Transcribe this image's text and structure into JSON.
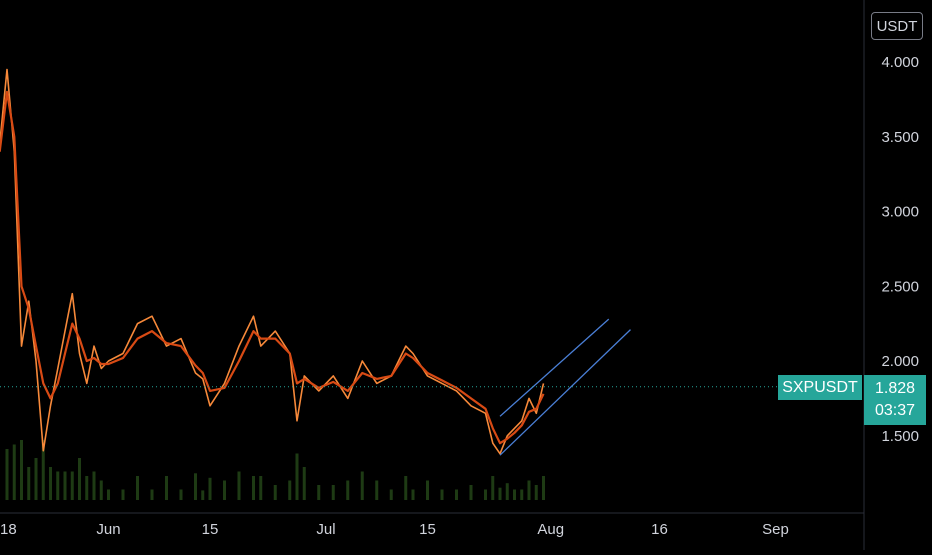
{
  "currency_button": "USDT",
  "symbol": "SXPUSDT",
  "last_price": "1.828",
  "countdown": "03:37",
  "colors": {
    "background": "#000000",
    "price_line": "#f7893a",
    "moving_average": "#d84a14",
    "channel": "#4a7fd6",
    "last_price_badge": "#26a69a",
    "axis_text": "#d1d4dc",
    "volume": "#1e3b14"
  },
  "chart_data": {
    "type": "line",
    "x_tick_labels": [
      "18",
      "Jun",
      "15",
      "Jul",
      "15",
      "Aug",
      "16",
      "Sep"
    ],
    "y_tick_labels": [
      "4.000",
      "3.500",
      "3.000",
      "2.500",
      "2.000",
      "1.500"
    ],
    "ylim": [
      1.0,
      4.2
    ],
    "xlim": [
      "2021-05-18",
      "2021-09-08"
    ],
    "grid": false,
    "last_value": 1.828,
    "series": [
      {
        "values": [
          [
            "2021-05-17",
            3.45
          ],
          [
            "2021-05-18",
            3.95
          ],
          [
            "2021-05-19",
            3.4
          ],
          [
            "2021-05-20",
            2.1
          ],
          [
            "2021-05-21",
            2.4
          ],
          [
            "2021-05-22",
            2.0
          ],
          [
            "2021-05-23",
            1.4
          ],
          [
            "2021-05-24",
            1.7
          ],
          [
            "2021-05-25",
            1.95
          ],
          [
            "2021-05-26",
            2.2
          ],
          [
            "2021-05-27",
            2.45
          ],
          [
            "2021-05-28",
            2.05
          ],
          [
            "2021-05-29",
            1.85
          ],
          [
            "2021-05-30",
            2.1
          ],
          [
            "2021-05-31",
            1.95
          ],
          [
            "2021-06-01",
            2.0
          ],
          [
            "2021-06-03",
            2.05
          ],
          [
            "2021-06-05",
            2.25
          ],
          [
            "2021-06-07",
            2.3
          ],
          [
            "2021-06-09",
            2.1
          ],
          [
            "2021-06-11",
            2.15
          ],
          [
            "2021-06-13",
            1.92
          ],
          [
            "2021-06-14",
            1.88
          ],
          [
            "2021-06-15",
            1.7
          ],
          [
            "2021-06-17",
            1.85
          ],
          [
            "2021-06-19",
            2.1
          ],
          [
            "2021-06-21",
            2.3
          ],
          [
            "2021-06-22",
            2.1
          ],
          [
            "2021-06-24",
            2.2
          ],
          [
            "2021-06-26",
            2.05
          ],
          [
            "2021-06-27",
            1.6
          ],
          [
            "2021-06-28",
            1.9
          ],
          [
            "2021-06-30",
            1.8
          ],
          [
            "2021-07-02",
            1.9
          ],
          [
            "2021-07-04",
            1.75
          ],
          [
            "2021-07-06",
            2.0
          ],
          [
            "2021-07-08",
            1.85
          ],
          [
            "2021-07-10",
            1.9
          ],
          [
            "2021-07-12",
            2.1
          ],
          [
            "2021-07-13",
            2.05
          ],
          [
            "2021-07-15",
            1.9
          ],
          [
            "2021-07-17",
            1.85
          ],
          [
            "2021-07-19",
            1.8
          ],
          [
            "2021-07-21",
            1.7
          ],
          [
            "2021-07-23",
            1.65
          ],
          [
            "2021-07-24",
            1.45
          ],
          [
            "2021-07-25",
            1.38
          ],
          [
            "2021-07-26",
            1.5
          ],
          [
            "2021-07-27",
            1.55
          ],
          [
            "2021-07-28",
            1.6
          ],
          [
            "2021-07-29",
            1.75
          ],
          [
            "2021-07-30",
            1.65
          ],
          [
            "2021-07-31",
            1.85
          ]
        ]
      },
      {
        "values": [
          [
            "2021-05-17",
            3.4
          ],
          [
            "2021-05-18",
            3.8
          ],
          [
            "2021-05-19",
            3.5
          ],
          [
            "2021-05-20",
            2.5
          ],
          [
            "2021-05-21",
            2.35
          ],
          [
            "2021-05-22",
            2.1
          ],
          [
            "2021-05-23",
            1.85
          ],
          [
            "2021-05-24",
            1.75
          ],
          [
            "2021-05-25",
            1.85
          ],
          [
            "2021-05-26",
            2.05
          ],
          [
            "2021-05-27",
            2.25
          ],
          [
            "2021-05-28",
            2.15
          ],
          [
            "2021-05-29",
            2.0
          ],
          [
            "2021-05-30",
            2.02
          ],
          [
            "2021-05-31",
            1.98
          ],
          [
            "2021-06-01",
            1.98
          ],
          [
            "2021-06-03",
            2.02
          ],
          [
            "2021-06-05",
            2.15
          ],
          [
            "2021-06-07",
            2.2
          ],
          [
            "2021-06-09",
            2.12
          ],
          [
            "2021-06-11",
            2.1
          ],
          [
            "2021-06-13",
            1.97
          ],
          [
            "2021-06-14",
            1.92
          ],
          [
            "2021-06-15",
            1.8
          ],
          [
            "2021-06-17",
            1.82
          ],
          [
            "2021-06-19",
            2.0
          ],
          [
            "2021-06-21",
            2.2
          ],
          [
            "2021-06-22",
            2.15
          ],
          [
            "2021-06-24",
            2.15
          ],
          [
            "2021-06-26",
            2.05
          ],
          [
            "2021-06-27",
            1.85
          ],
          [
            "2021-06-28",
            1.88
          ],
          [
            "2021-06-30",
            1.82
          ],
          [
            "2021-07-02",
            1.86
          ],
          [
            "2021-07-04",
            1.8
          ],
          [
            "2021-07-06",
            1.92
          ],
          [
            "2021-07-08",
            1.88
          ],
          [
            "2021-07-10",
            1.9
          ],
          [
            "2021-07-12",
            2.05
          ],
          [
            "2021-07-13",
            2.02
          ],
          [
            "2021-07-15",
            1.92
          ],
          [
            "2021-07-17",
            1.87
          ],
          [
            "2021-07-19",
            1.82
          ],
          [
            "2021-07-21",
            1.75
          ],
          [
            "2021-07-23",
            1.68
          ],
          [
            "2021-07-24",
            1.55
          ],
          [
            "2021-07-25",
            1.45
          ],
          [
            "2021-07-26",
            1.48
          ],
          [
            "2021-07-27",
            1.52
          ],
          [
            "2021-07-28",
            1.57
          ],
          [
            "2021-07-29",
            1.66
          ],
          [
            "2021-07-30",
            1.68
          ],
          [
            "2021-07-31",
            1.78
          ]
        ]
      }
    ],
    "channel_lines": [
      [
        [
          "2021-07-25",
          1.63
        ],
        [
          "2021-08-09",
          2.28
        ]
      ],
      [
        [
          "2021-07-25",
          1.37
        ],
        [
          "2021-08-12",
          2.21
        ]
      ]
    ]
  }
}
